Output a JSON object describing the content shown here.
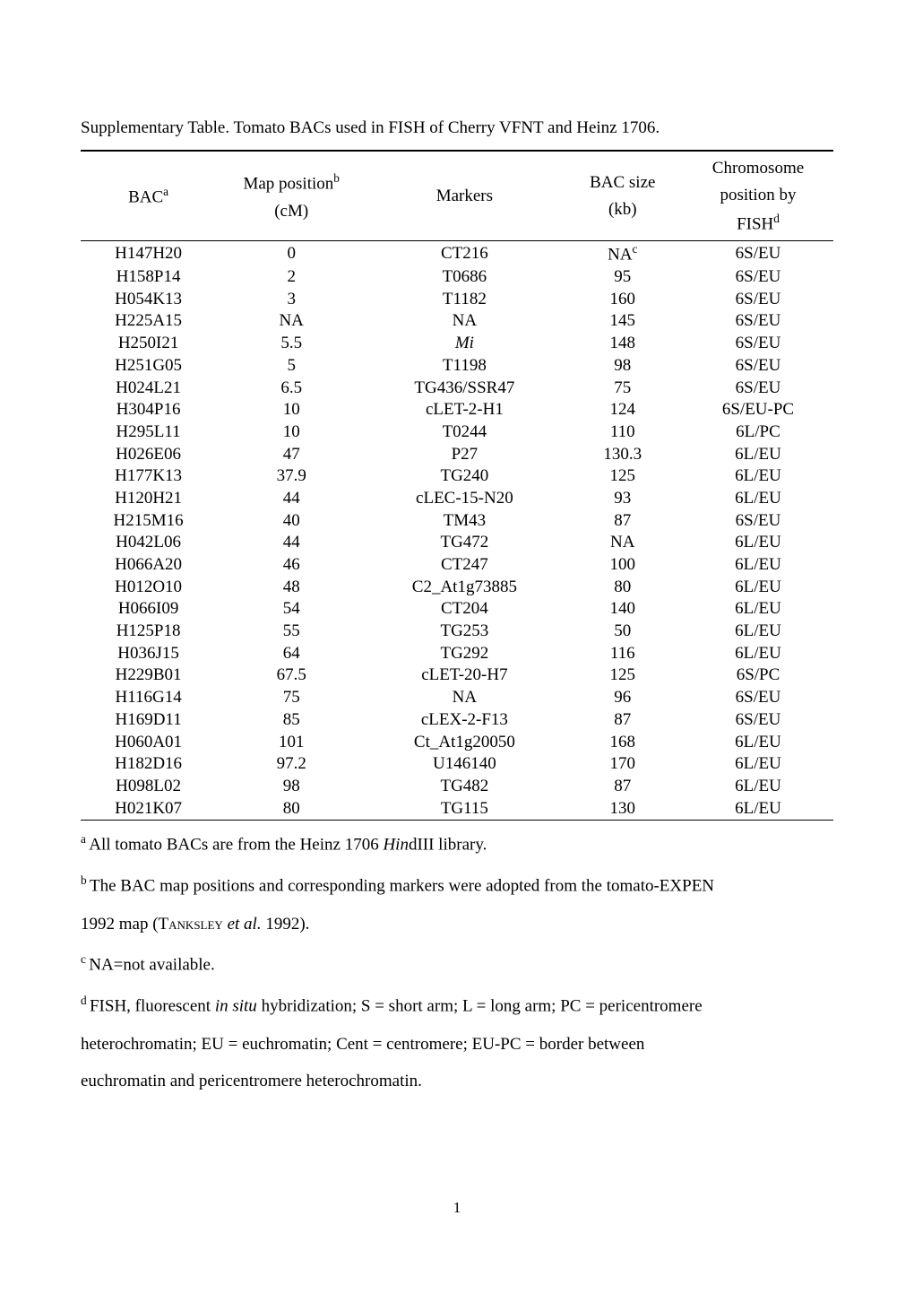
{
  "caption": "Supplementary Table. Tomato BACs used in FISH of Cherry VFNT and Heinz 1706.",
  "headers": {
    "col1": "BAC",
    "col1_sup": "a",
    "col2_line1": "Map position",
    "col2_sup": "b",
    "col2_line2": "(cM)",
    "col3": "Markers",
    "col4_line1": "BAC size",
    "col4_line2": "(kb)",
    "col5_line1": "Chromosome",
    "col5_line2": "position by",
    "col5_line3": "FISH",
    "col5_sup": "d"
  },
  "rows": [
    {
      "bac": "H147H20",
      "map": "0",
      "marker": "CT216",
      "size": "NA",
      "size_sup": "c",
      "fish": "6S/EU"
    },
    {
      "bac": "H158P14",
      "map": "2",
      "marker": "T0686",
      "size": "95",
      "fish": "6S/EU"
    },
    {
      "bac": "H054K13",
      "map": "3",
      "marker": "T1182",
      "size": "160",
      "fish": "6S/EU"
    },
    {
      "bac": "H225A15",
      "map": "NA",
      "marker": "NA",
      "size": "145",
      "fish": "6S/EU"
    },
    {
      "bac": "H250I21",
      "map": "5.5",
      "marker": "Mi",
      "marker_italic": true,
      "size": "148",
      "fish": "6S/EU"
    },
    {
      "bac": "H251G05",
      "map": "5",
      "marker": "T1198",
      "size": "98",
      "fish": "6S/EU"
    },
    {
      "bac": "H024L21",
      "map": "6.5",
      "marker": "TG436/SSR47",
      "size": "75",
      "fish": "6S/EU"
    },
    {
      "bac": "H304P16",
      "map": "10",
      "marker": "cLET-2-H1",
      "size": "124",
      "fish": "6S/EU-PC"
    },
    {
      "bac": "H295L11",
      "map": "10",
      "marker": "T0244",
      "size": "110",
      "fish": "6L/PC"
    },
    {
      "bac": "H026E06",
      "map": "47",
      "marker": "P27",
      "size": "130.3",
      "fish": "6L/EU"
    },
    {
      "bac": "H177K13",
      "map": "37.9",
      "marker": "TG240",
      "size": "125",
      "fish": "6L/EU"
    },
    {
      "bac": "H120H21",
      "map": "44",
      "marker": "cLEC-15-N20",
      "size": "93",
      "fish": "6L/EU"
    },
    {
      "bac": "H215M16",
      "map": "40",
      "marker": "TM43",
      "size": "87",
      "fish": "6S/EU"
    },
    {
      "bac": "H042L06",
      "map": "44",
      "marker": "TG472",
      "size": "NA",
      "fish": "6L/EU"
    },
    {
      "bac": "H066A20",
      "map": "46",
      "marker": "CT247",
      "size": "100",
      "fish": "6L/EU"
    },
    {
      "bac": "H012O10",
      "map": "48",
      "marker": "C2_At1g73885",
      "size": "80",
      "fish": "6L/EU"
    },
    {
      "bac": "H066I09",
      "map": "54",
      "marker": "CT204",
      "size": "140",
      "fish": "6L/EU"
    },
    {
      "bac": "H125P18",
      "map": "55",
      "marker": "TG253",
      "size": "50",
      "fish": "6L/EU"
    },
    {
      "bac": "H036J15",
      "map": "64",
      "marker": "TG292",
      "size": "116",
      "fish": "6L/EU"
    },
    {
      "bac": "H229B01",
      "map": "67.5",
      "marker": "cLET-20-H7",
      "size": "125",
      "fish": "6S/PC"
    },
    {
      "bac": "H116G14",
      "map": "75",
      "marker": "NA",
      "size": "96",
      "fish": "6S/EU"
    },
    {
      "bac": "H169D11",
      "map": "85",
      "marker": "cLEX-2-F13",
      "size": "87",
      "fish": "6S/EU"
    },
    {
      "bac": "H060A01",
      "map": "101",
      "marker": "Ct_At1g20050",
      "size": "168",
      "fish": "6L/EU"
    },
    {
      "bac": "H182D16",
      "map": "97.2",
      "marker": "U146140",
      "size": "170",
      "fish": "6L/EU"
    },
    {
      "bac": "H098L02",
      "map": "98",
      "marker": "TG482",
      "size": "87",
      "fish": "6L/EU"
    },
    {
      "bac": "H021K07",
      "map": "80",
      "marker": "TG115",
      "size": "130",
      "fish": "6L/EU"
    }
  ],
  "footnotes": {
    "a_pre": "All tomato BACs are from the Heinz 1706 ",
    "a_italic": "Hin",
    "a_post": "dIII library.",
    "b_pre": "The BAC map positions and corresponding markers were adopted from the tomato-EXPEN",
    "b_line2_pre": "1992 map (",
    "b_line2_smallcaps": "Tanksley",
    "b_line2_mid": " ",
    "b_line2_italic": "et al.",
    "b_line2_post": " 1992).",
    "c": "NA=not available.",
    "d_pre": "FISH, fluorescent ",
    "d_italic": "in situ",
    "d_post": " hybridization; S = short arm; L = long arm; PC = pericentromere",
    "d_line2": "heterochromatin; EU = euchromatin; Cent = centromere; EU-PC = border between",
    "d_line3": "euchromatin and pericentromere heterochromatin."
  },
  "page_number": "1",
  "col_widths": [
    "18%",
    "20%",
    "26%",
    "16%",
    "20%"
  ]
}
